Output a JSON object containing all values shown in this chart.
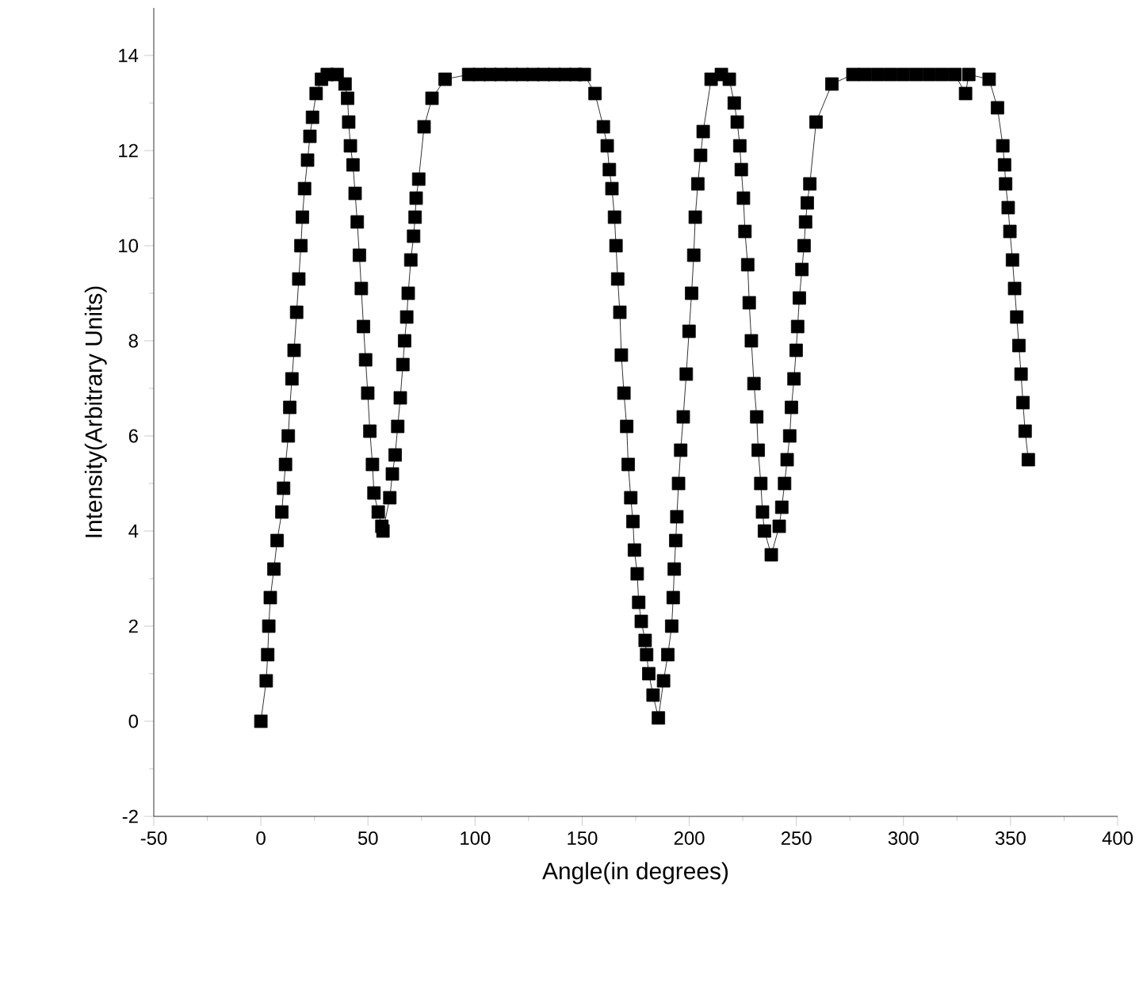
{
  "chart_data": {
    "type": "line",
    "xlabel": "Angle(in degrees)",
    "ylabel": "Intensity(Arbitrary Units)",
    "xlim": [
      -50,
      400
    ],
    "ylim": [
      -2,
      15
    ],
    "xticks": [
      -50,
      0,
      50,
      100,
      150,
      200,
      250,
      300,
      350,
      400
    ],
    "yticks": [
      -2,
      0,
      2,
      4,
      6,
      8,
      10,
      12,
      14
    ],
    "marker": "square",
    "line_style": "solid",
    "series": [
      {
        "color": "#000000",
        "x": [
          0,
          2.5,
          3.2,
          3.7,
          4.4,
          6.1,
          7.6,
          9.8,
          10.6,
          11.5,
          12.8,
          13.5,
          14.5,
          15.5,
          16.7,
          17.7,
          18.7,
          19.4,
          20.4,
          21.8,
          22.9,
          24.1,
          25.8,
          28.3,
          31,
          35.6,
          39.3,
          40.5,
          41,
          41.8,
          43,
          44,
          45,
          46,
          46.9,
          47.9,
          48.9,
          49.9,
          50.9,
          52.1,
          52.8,
          54.8,
          56.5,
          57,
          60.2,
          61.4,
          62.7,
          63.9,
          65.1,
          66.3,
          67.1,
          68.1,
          68.8,
          70,
          71.3,
          72,
          72.5,
          73.7,
          76.2,
          79.9,
          86,
          97,
          102,
          107,
          112,
          117,
          122,
          127,
          132,
          137,
          142,
          147,
          151,
          156,
          159.9,
          161.7,
          162.7,
          163.9,
          165.1,
          165.8,
          166.6,
          167.6,
          168.3,
          169.5,
          170.8,
          171.5,
          172.7,
          173.7,
          174.4,
          175.7,
          176.4,
          177.6,
          179.4,
          180.1,
          181.1,
          183.1,
          185.6,
          188,
          190,
          191.8,
          192.5,
          193,
          193.7,
          194.2,
          195,
          196,
          197.2,
          198.6,
          199.9,
          201.1,
          202.1,
          202.8,
          204,
          205.3,
          206.5,
          210.2,
          215,
          218.7,
          221,
          222.4,
          223.6,
          224.3,
          225.3,
          226,
          227.3,
          228,
          229,
          230.2,
          231.5,
          232.2,
          233.4,
          234.2,
          235.1,
          238.3,
          242,
          243.2,
          244.5,
          245.7,
          246.9,
          247.7,
          248.9,
          249.9,
          250.6,
          251.4,
          252.6,
          253.6,
          254.3,
          255.1,
          256.3,
          259.2,
          266.6,
          276.4,
          282,
          288,
          294,
          300,
          306,
          312,
          318,
          324,
          329,
          330.5,
          340,
          343.9,
          346.4,
          347.2,
          347.7,
          348.9,
          349.7,
          350.9,
          351.9,
          352.9,
          353.9,
          354.9,
          355.8,
          356.8,
          358.3
        ],
        "values": [
          0,
          0.85,
          1.4,
          2,
          2.6,
          3.2,
          3.8,
          4.4,
          4.9,
          5.4,
          6,
          6.6,
          7.2,
          7.8,
          8.6,
          9.3,
          10,
          10.6,
          11.2,
          11.8,
          12.3,
          12.7,
          13.2,
          13.5,
          13.6,
          13.6,
          13.4,
          13.1,
          12.6,
          12.1,
          11.7,
          11.1,
          10.5,
          9.8,
          9.1,
          8.3,
          7.6,
          6.9,
          6.1,
          5.4,
          4.8,
          4.4,
          4.1,
          4,
          4.7,
          5.2,
          5.6,
          6.2,
          6.8,
          7.5,
          8,
          8.5,
          9,
          9.7,
          10.2,
          10.6,
          11,
          11.4,
          12.5,
          13.1,
          13.5,
          13.6,
          13.6,
          13.6,
          13.6,
          13.6,
          13.6,
          13.6,
          13.6,
          13.6,
          13.6,
          13.6,
          13.6,
          13.2,
          12.5,
          12.1,
          11.6,
          11.2,
          10.6,
          10,
          9.3,
          8.6,
          7.7,
          6.9,
          6.2,
          5.4,
          4.7,
          4.2,
          3.6,
          3.1,
          2.5,
          2.1,
          1.7,
          1.4,
          1,
          0.55,
          0.07,
          0.85,
          1.4,
          2,
          2.6,
          3.2,
          3.8,
          4.3,
          5,
          5.7,
          6.4,
          7.3,
          8.2,
          9,
          9.8,
          10.6,
          11.3,
          11.9,
          12.4,
          13.5,
          13.6,
          13.5,
          13,
          12.6,
          12.1,
          11.6,
          11,
          10.3,
          9.6,
          8.8,
          8,
          7.1,
          6.4,
          5.7,
          5,
          4.4,
          4,
          3.5,
          4.1,
          4.5,
          5,
          5.5,
          6,
          6.6,
          7.2,
          7.8,
          8.3,
          8.9,
          9.5,
          10,
          10.5,
          10.9,
          11.3,
          12.6,
          13.4,
          13.6,
          13.6,
          13.6,
          13.6,
          13.6,
          13.6,
          13.6,
          13.6,
          13.6,
          13.2,
          13.6,
          13.5,
          12.9,
          12.1,
          11.7,
          11.3,
          10.8,
          10.3,
          9.7,
          9.1,
          8.5,
          7.9,
          7.3,
          6.7,
          6.1,
          5.5
        ]
      }
    ]
  }
}
